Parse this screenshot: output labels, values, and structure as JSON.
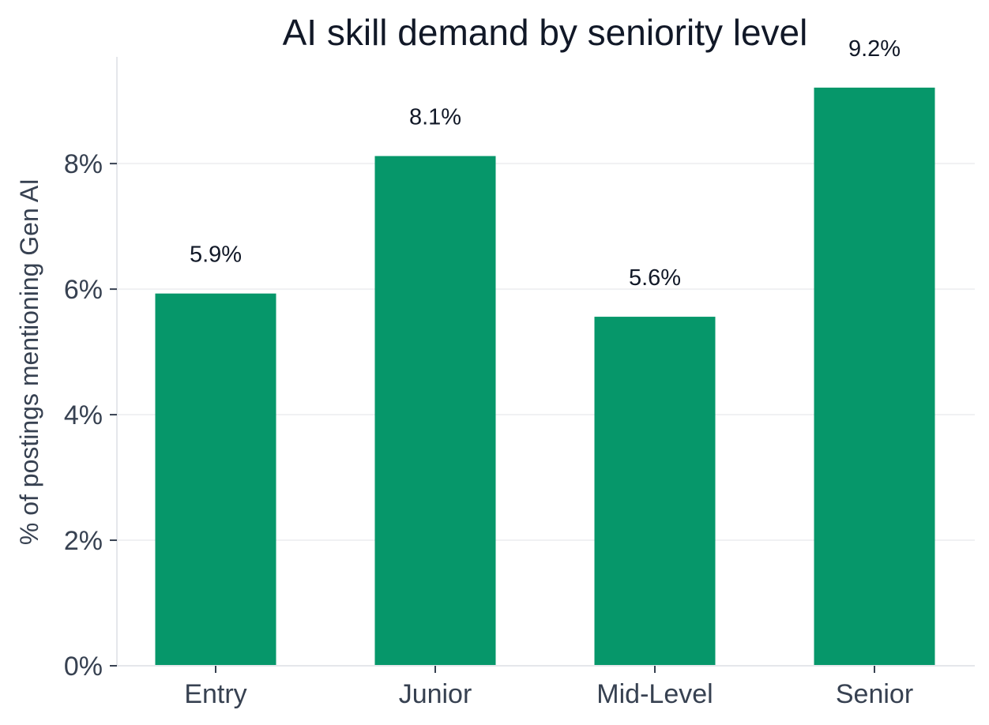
{
  "chart_data": {
    "type": "bar",
    "title": "AI skill demand by seniority level",
    "xlabel": "",
    "ylabel": "% of postings mentioning Gen AI",
    "categories": [
      "Entry",
      "Junior",
      "Mid-Level",
      "Senior"
    ],
    "values": [
      5.93,
      8.12,
      5.56,
      9.21
    ],
    "data_labels": [
      "5.9%",
      "8.1%",
      "5.6%",
      "9.2%"
    ],
    "ylim": [
      0,
      9.7
    ],
    "yticks": [
      0,
      2,
      4,
      6,
      8
    ],
    "ytick_labels": [
      "0%",
      "2%",
      "4%",
      "6%",
      "8%"
    ],
    "bar_color": "#06976a",
    "grid": "horizontal",
    "legend": "none"
  }
}
